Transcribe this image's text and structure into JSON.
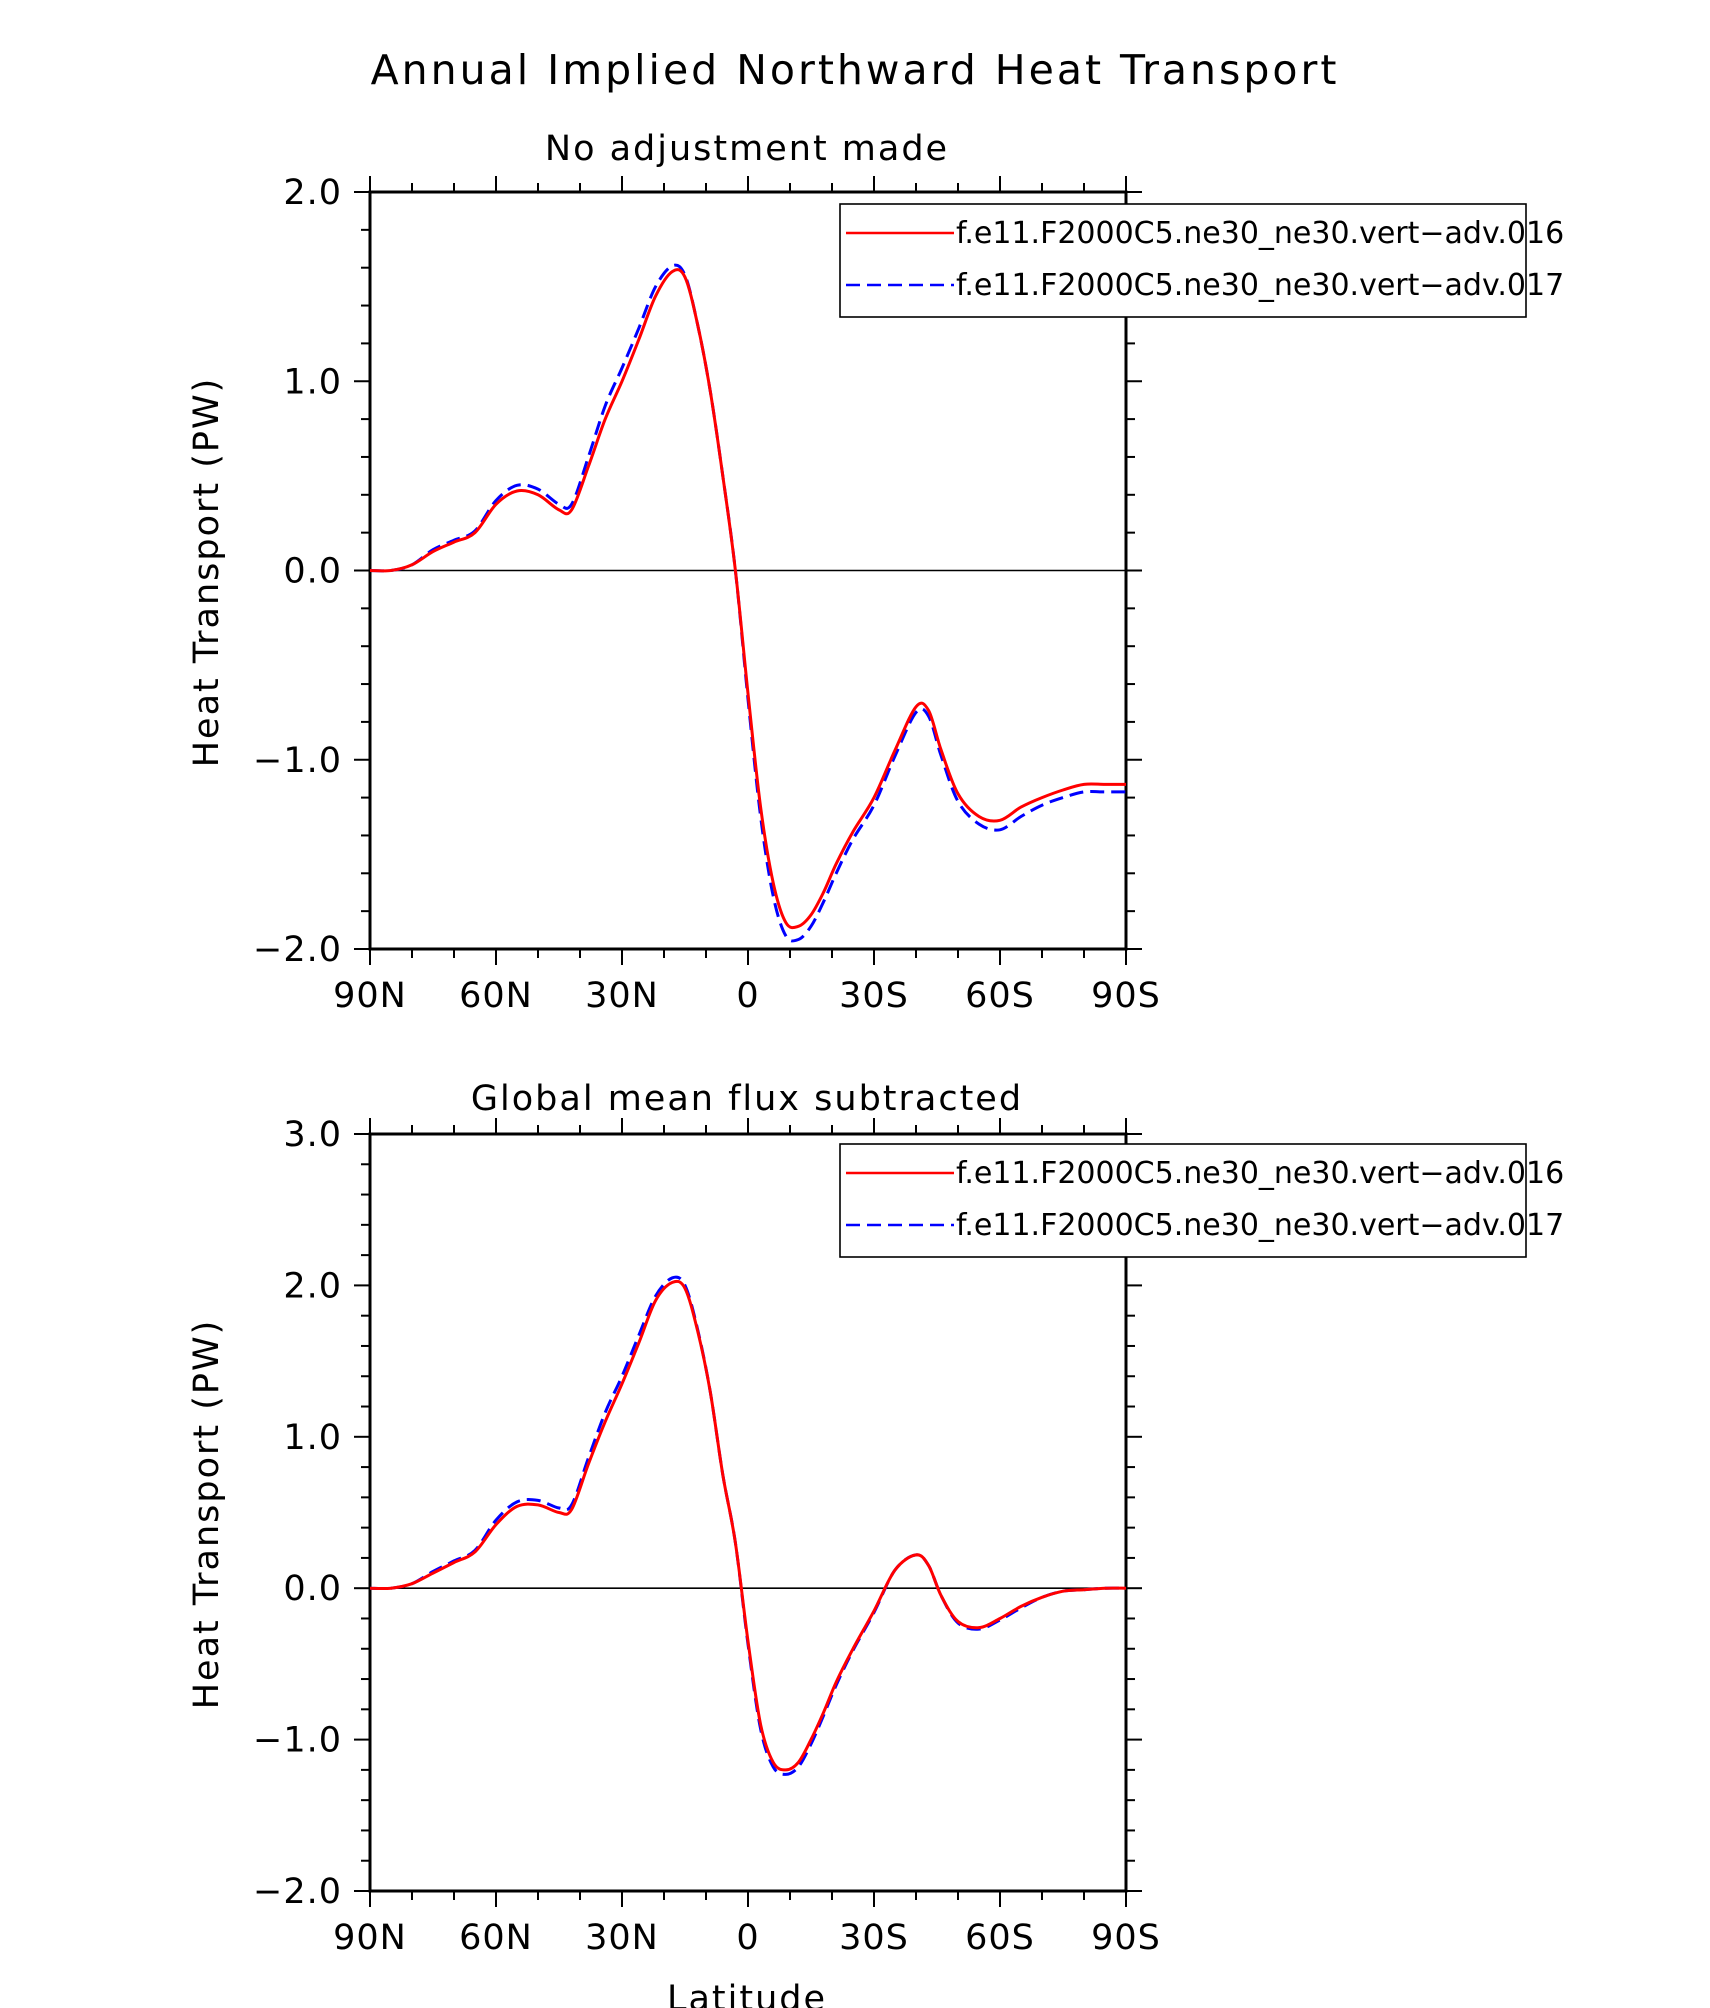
{
  "figure_title": "Annual Implied Northward Heat Transport",
  "chart_data": [
    {
      "type": "line",
      "title": "No adjustment made",
      "xlabel": "",
      "ylabel": "Heat Transport (PW)",
      "xlim": [
        90,
        -90
      ],
      "ylim": [
        -2.0,
        2.0
      ],
      "yticks": [
        -2.0,
        -1.0,
        0.0,
        1.0,
        2.0
      ],
      "ytick_labels": [
        "−2.0",
        "−1.0",
        "0.0",
        "1.0",
        "2.0"
      ],
      "xticks": [
        90,
        60,
        30,
        0,
        -30,
        -60,
        -90
      ],
      "xtick_labels": [
        "90N",
        "60N",
        "30N",
        "0",
        "30S",
        "60S",
        "90S"
      ],
      "legend_position": "top-right",
      "zero_line": true,
      "x": [
        90,
        85,
        80,
        75,
        70,
        65,
        60,
        55,
        50,
        45,
        42,
        38,
        34,
        30,
        26,
        22,
        18,
        15,
        12,
        9,
        6,
        3,
        0,
        -3,
        -6,
        -9,
        -12,
        -15,
        -18,
        -21,
        -25,
        -30,
        -35,
        -40,
        -43,
        -46,
        -50,
        -55,
        -60,
        -65,
        -70,
        -75,
        -80,
        -85,
        -90
      ],
      "series": [
        {
          "name": "f.e11.F2000C5.ne30_ne30.vert−adv.016",
          "color": "#ff0000",
          "dash": "solid",
          "values": [
            0.0,
            0.0,
            0.03,
            0.1,
            0.15,
            0.2,
            0.35,
            0.42,
            0.4,
            0.32,
            0.32,
            0.55,
            0.8,
            1.0,
            1.22,
            1.45,
            1.58,
            1.55,
            1.3,
            0.95,
            0.5,
            0.0,
            -0.65,
            -1.25,
            -1.65,
            -1.86,
            -1.88,
            -1.82,
            -1.7,
            -1.55,
            -1.38,
            -1.2,
            -0.95,
            -0.72,
            -0.74,
            -0.95,
            -1.18,
            -1.3,
            -1.32,
            -1.25,
            -1.2,
            -1.16,
            -1.13,
            -1.13,
            -1.13
          ]
        },
        {
          "name": "f.e11.F2000C5.ne30_ne30.vert−adv.017",
          "color": "#0000ff",
          "dash": "dashed",
          "values": [
            0.0,
            0.0,
            0.03,
            0.11,
            0.16,
            0.21,
            0.37,
            0.45,
            0.43,
            0.35,
            0.35,
            0.6,
            0.87,
            1.07,
            1.28,
            1.5,
            1.61,
            1.56,
            1.3,
            0.95,
            0.5,
            0.0,
            -0.68,
            -1.3,
            -1.72,
            -1.93,
            -1.95,
            -1.88,
            -1.75,
            -1.6,
            -1.42,
            -1.24,
            -0.98,
            -0.75,
            -0.77,
            -0.98,
            -1.22,
            -1.34,
            -1.37,
            -1.3,
            -1.24,
            -1.2,
            -1.17,
            -1.17,
            -1.17
          ]
        }
      ]
    },
    {
      "type": "line",
      "title": "Global mean flux subtracted",
      "xlabel": "Latitude",
      "ylabel": "Heat Transport (PW)",
      "xlim": [
        90,
        -90
      ],
      "ylim": [
        -2.0,
        3.0
      ],
      "yticks": [
        -2.0,
        -1.0,
        0.0,
        1.0,
        2.0,
        3.0
      ],
      "ytick_labels": [
        "−2.0",
        "−1.0",
        "0.0",
        "1.0",
        "2.0",
        "3.0"
      ],
      "xticks": [
        90,
        60,
        30,
        0,
        -30,
        -60,
        -90
      ],
      "xtick_labels": [
        "90N",
        "60N",
        "30N",
        "0",
        "30S",
        "60S",
        "90S"
      ],
      "legend_position": "top-right",
      "zero_line": true,
      "x": [
        90,
        85,
        80,
        75,
        70,
        65,
        60,
        55,
        50,
        45,
        42,
        38,
        34,
        30,
        26,
        22,
        18,
        15,
        12,
        9,
        6,
        3,
        0,
        -3,
        -6,
        -9,
        -12,
        -15,
        -18,
        -21,
        -25,
        -30,
        -35,
        -40,
        -43,
        -46,
        -50,
        -55,
        -60,
        -65,
        -70,
        -75,
        -80,
        -85,
        -90
      ],
      "series": [
        {
          "name": "f.e11.F2000C5.ne30_ne30.vert−adv.016",
          "color": "#ff0000",
          "dash": "solid",
          "values": [
            0.0,
            0.0,
            0.03,
            0.1,
            0.17,
            0.24,
            0.42,
            0.54,
            0.55,
            0.5,
            0.52,
            0.82,
            1.1,
            1.35,
            1.62,
            1.9,
            2.02,
            1.98,
            1.7,
            1.3,
            0.75,
            0.3,
            -0.35,
            -0.9,
            -1.15,
            -1.2,
            -1.15,
            -1.0,
            -0.82,
            -0.62,
            -0.4,
            -0.15,
            0.12,
            0.22,
            0.15,
            -0.05,
            -0.22,
            -0.26,
            -0.2,
            -0.12,
            -0.06,
            -0.02,
            -0.01,
            0.0,
            0.0
          ]
        },
        {
          "name": "f.e11.F2000C5.ne30_ne30.vert−adv.017",
          "color": "#0000ff",
          "dash": "dashed",
          "values": [
            0.0,
            0.0,
            0.03,
            0.11,
            0.18,
            0.25,
            0.45,
            0.57,
            0.58,
            0.53,
            0.55,
            0.86,
            1.16,
            1.4,
            1.67,
            1.93,
            2.05,
            2.0,
            1.71,
            1.3,
            0.75,
            0.3,
            -0.37,
            -0.93,
            -1.18,
            -1.23,
            -1.18,
            -1.03,
            -0.84,
            -0.64,
            -0.41,
            -0.16,
            0.12,
            0.22,
            0.15,
            -0.05,
            -0.23,
            -0.27,
            -0.21,
            -0.13,
            -0.06,
            -0.02,
            -0.01,
            0.0,
            0.0
          ]
        }
      ]
    }
  ]
}
